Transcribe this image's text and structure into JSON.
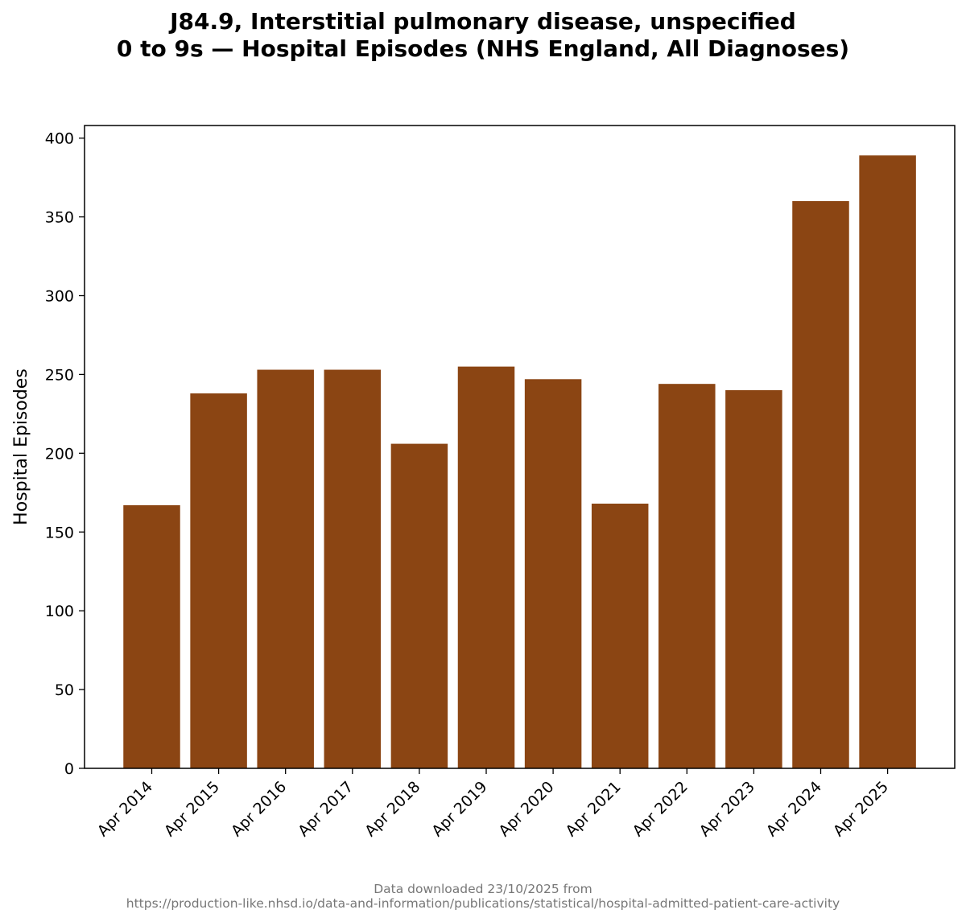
{
  "chart_data": {
    "type": "bar",
    "title_line1": "J84.9, Interstitial pulmonary disease, unspecified",
    "title_line2": "0 to 9s — Hospital Episodes (NHS England, All Diagnoses)",
    "xlabel": "",
    "ylabel": "Hospital Episodes",
    "categories": [
      "Apr 2014",
      "Apr 2015",
      "Apr 2016",
      "Apr 2017",
      "Apr 2018",
      "Apr 2019",
      "Apr 2020",
      "Apr 2021",
      "Apr 2022",
      "Apr 2023",
      "Apr 2024",
      "Apr 2025"
    ],
    "values": [
      167,
      238,
      253,
      253,
      206,
      255,
      247,
      168,
      244,
      240,
      360,
      389
    ],
    "ylim": [
      0,
      408
    ],
    "yticks": [
      0,
      50,
      100,
      150,
      200,
      250,
      300,
      350,
      400
    ],
    "bar_color": "#8b4513",
    "grid": false,
    "legend": "none"
  },
  "footer": {
    "line1": "Data downloaded 23/10/2025 from",
    "line2": "https://production-like.nhsd.io/data-and-information/publications/statistical/hospital-admitted-patient-care-activity"
  }
}
